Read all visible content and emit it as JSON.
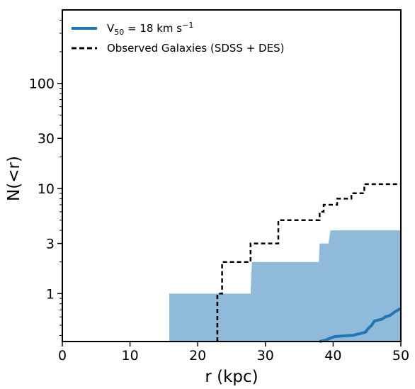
{
  "chart_data": {
    "type": "line",
    "xlabel": "r (kpc)",
    "ylabel": "N(<r)",
    "xlim": [
      0,
      50
    ],
    "ylim": [
      0.35,
      500
    ],
    "yscale": "log",
    "xticks": [
      0,
      10,
      20,
      30,
      40,
      50
    ],
    "xtick_labels": [
      "0",
      "10",
      "20",
      "30",
      "40",
      "50"
    ],
    "yticks": [
      1,
      3,
      10,
      30,
      100
    ],
    "ytick_labels": [
      "1",
      "3",
      "10",
      "30",
      "100"
    ],
    "grid": false,
    "legend_position": "top-left",
    "legend": [
      {
        "label": "V",
        "subscript": "50",
        "suffix": " = 18 km s",
        "superscript": "−1",
        "style": "solid",
        "color": "#1f77b4"
      },
      {
        "label": "Observed Galaxies (SDSS + DES)",
        "style": "dashed",
        "color": "#000000"
      }
    ],
    "series": [
      {
        "name": "V50 = 18 km s−1",
        "kind": "median",
        "color": "#1f77b4",
        "x": [
          38.0,
          38.8,
          39.3,
          39.7,
          40.3,
          42.5,
          42.9,
          43.5,
          44.2,
          44.8,
          45.1,
          45.7,
          46.1,
          47.2,
          47.7,
          48.4,
          49.1,
          49.6,
          50.0
        ],
        "y": [
          0.35,
          0.36,
          0.37,
          0.38,
          0.39,
          0.4,
          0.4,
          0.41,
          0.42,
          0.43,
          0.46,
          0.5,
          0.55,
          0.57,
          0.6,
          0.62,
          0.67,
          0.7,
          0.72
        ]
      },
      {
        "name": "Observed Galaxies (SDSS + DES)",
        "kind": "step",
        "color": "#000000",
        "x": [
          22.9,
          22.9,
          23.6,
          23.6,
          27.8,
          27.8,
          31.9,
          31.9,
          38.0,
          38.0,
          38.6,
          38.6,
          40.6,
          40.6,
          42.7,
          42.7,
          44.6,
          44.6,
          50.0
        ],
        "y": [
          0.35,
          1,
          1,
          2,
          2,
          3,
          3,
          5,
          5,
          6,
          6,
          7,
          7,
          8,
          8,
          9,
          9,
          11,
          11
        ]
      }
    ],
    "band": {
      "color": "#8fbad9",
      "x": [
        15.8,
        27.8,
        28.0,
        37.9,
        38.0,
        39.3,
        39.6,
        50.0
      ],
      "y_upper": [
        1,
        1,
        2,
        2,
        3,
        3,
        4,
        4
      ],
      "y_lower": 0.35
    }
  }
}
